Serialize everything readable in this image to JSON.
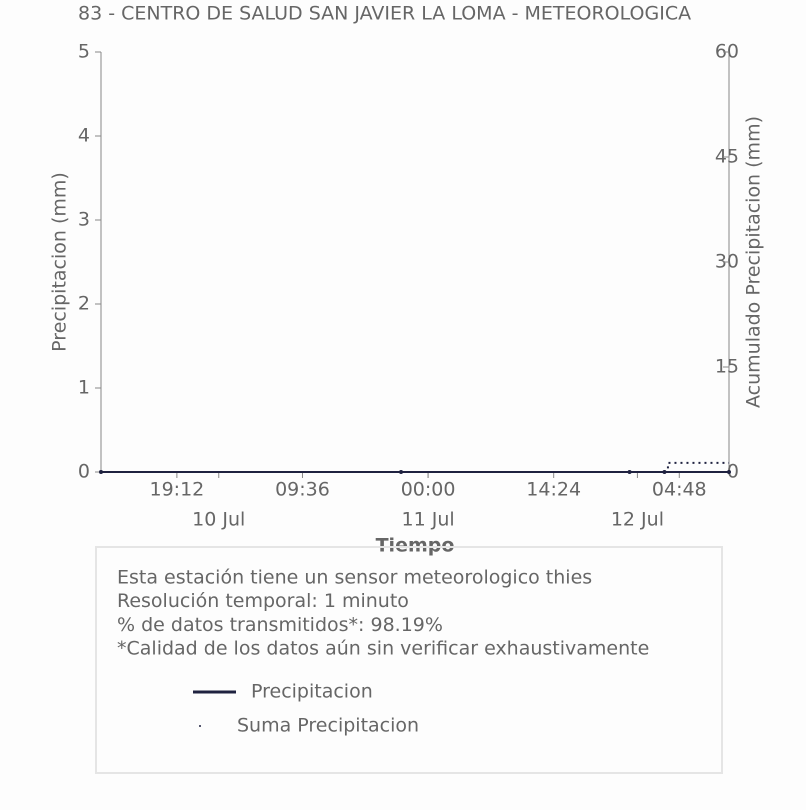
{
  "chart_data": {
    "type": "line",
    "title": "83 - CENTRO DE SALUD SAN JAVIER LA LOMA - METEOROLOGICA",
    "x_label": "Tiempo",
    "y_label": "Precipitacion (mm)",
    "y2_label": "Acumulado Precipitacion (mm)",
    "xlim": [
      -37.5,
      34.5
    ],
    "xticks": [
      {
        "value": -28.8,
        "label": "19:12"
      },
      {
        "value": -14.4,
        "label": "09:36"
      },
      {
        "value": 0,
        "label": "00:00"
      },
      {
        "value": 14.4,
        "label": "14:24"
      },
      {
        "value": 28.8,
        "label": "04:48"
      }
    ],
    "xdate_ticks": [
      {
        "value": -24,
        "label": "10 Jul"
      },
      {
        "value": 0,
        "label": "11 Jul"
      },
      {
        "value": 24,
        "label": "12 Jul"
      }
    ],
    "ylim": [
      0,
      5
    ],
    "yticks": [
      0,
      1,
      2,
      3,
      4,
      5
    ],
    "y2lim": [
      0,
      60
    ],
    "y2ticks": [
      0,
      15,
      30,
      45,
      60
    ],
    "series": [
      {
        "name": "Precipitacion",
        "color": "#1f2240",
        "style": "solid",
        "x": [
          -37.5,
          -3.1,
          23.1,
          27.1,
          34.5
        ],
        "values": [
          0,
          0,
          0,
          0,
          0
        ]
      },
      {
        "name": "Suma Precipitacion",
        "color": "#1f2240",
        "style": "dotted",
        "axis": "y2",
        "x": [
          23.1,
          27.5,
          27.5,
          34.5
        ],
        "values": [
          0,
          0,
          1.3,
          1.3
        ]
      }
    ],
    "info_lines": [
      "Esta estación tiene un sensor meteorologico thies",
      "Resolución temporal: 1 minuto",
      "% de datos transmitidos*: 98.19%",
      "*Calidad de los datos aún sin verificar exhaustivamente"
    ]
  }
}
